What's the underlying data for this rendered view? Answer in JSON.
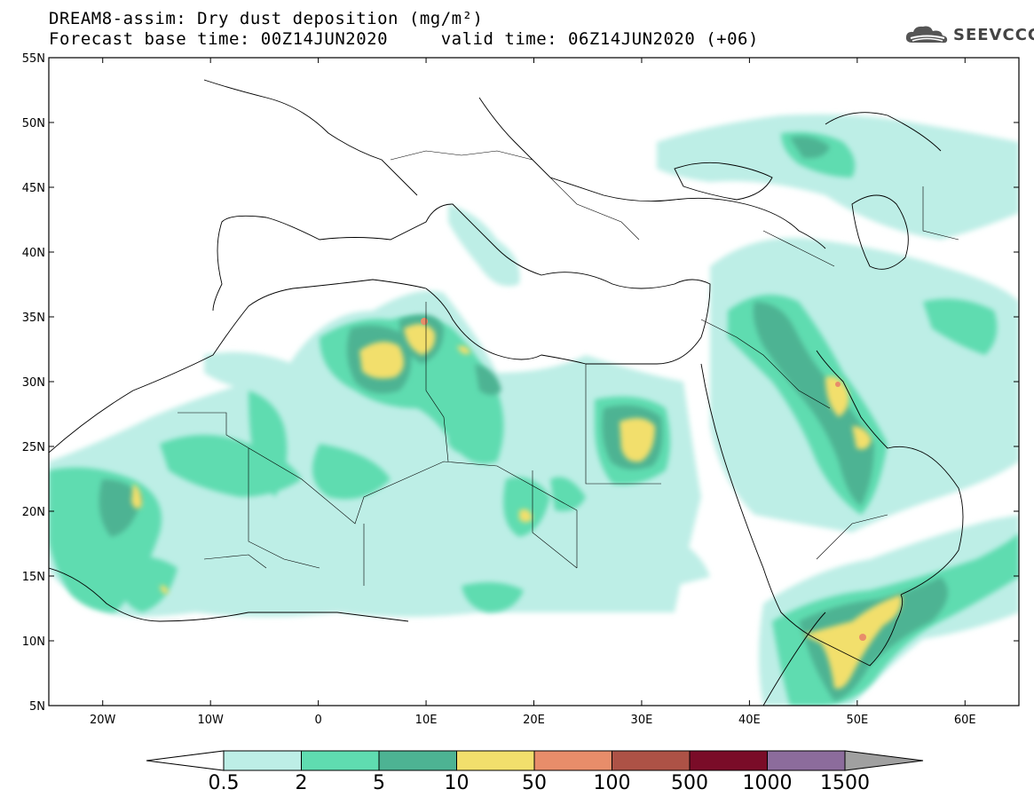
{
  "header": {
    "title_line1": "DREAM8-assim: Dry dust deposition (mg/m²)",
    "title_line2": "Forecast base time: 00Z14JUN2020     valid time: 06Z14JUN2020 (+06)",
    "logo_text": "SEEVCCC",
    "logo_icon": "cloud-icon"
  },
  "map": {
    "lon_range": [
      -25,
      65
    ],
    "lat_range": [
      5,
      55
    ],
    "lat_ticks": [
      "55N",
      "50N",
      "45N",
      "40N",
      "35N",
      "30N",
      "25N",
      "20N",
      "15N",
      "10N",
      "5N"
    ],
    "lon_ticks": [
      "20W",
      "10W",
      "0",
      "10E",
      "20E",
      "30E",
      "40E",
      "50E",
      "60E"
    ]
  },
  "colorbar": {
    "labels": [
      "0.5",
      "2",
      "5",
      "10",
      "50",
      "100",
      "500",
      "1000",
      "1500"
    ],
    "colors": [
      "#bdeee6",
      "#5fdcb0",
      "#4db393",
      "#f2df6c",
      "#e88d6a",
      "#ad5246",
      "#7a0c28",
      "#8c6c9c",
      "#a0a0a0"
    ]
  }
}
